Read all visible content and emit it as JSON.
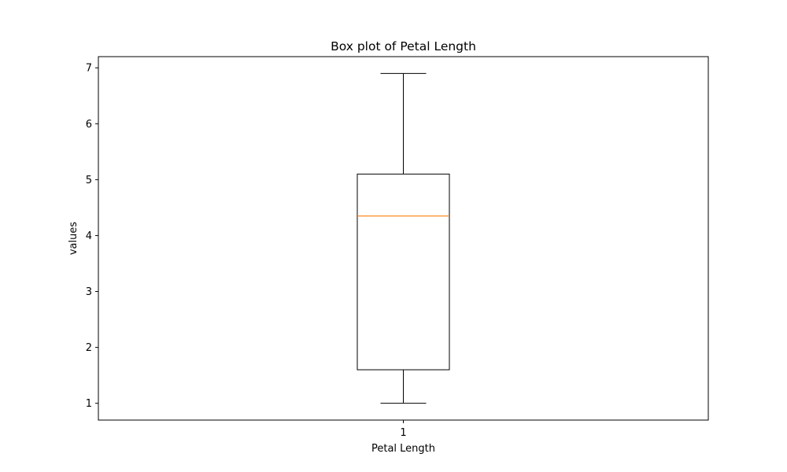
{
  "chart_data": {
    "type": "box",
    "title": "Box plot of Petal Length",
    "xlabel": "Petal Length",
    "ylabel": "values",
    "categories": [
      "1"
    ],
    "boxes": [
      {
        "category": "1",
        "whisker_low": 1.0,
        "q1": 1.6,
        "median": 4.35,
        "q3": 5.1,
        "whisker_high": 6.9
      }
    ],
    "ylim": [
      0.7,
      7.2
    ],
    "yticks": [
      "1",
      "2",
      "3",
      "4",
      "5",
      "6",
      "7"
    ],
    "grid": false,
    "colors": {
      "box": "#000000",
      "median": "#ff7f0e",
      "axes": "#000000"
    }
  }
}
